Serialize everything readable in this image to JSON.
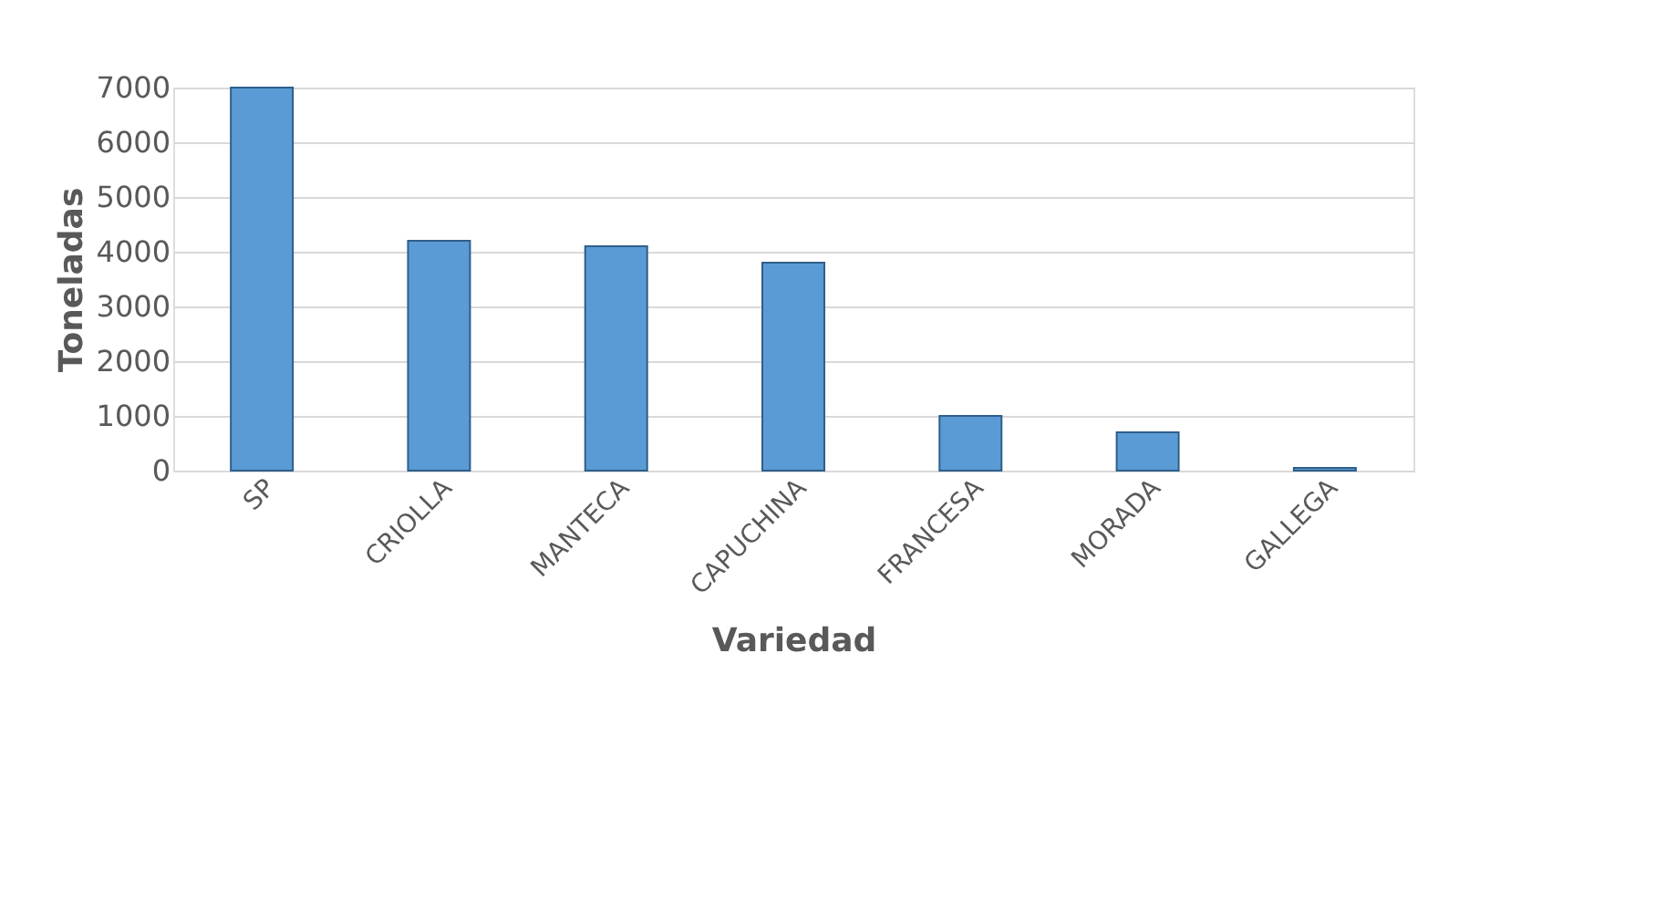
{
  "chart_data": {
    "type": "bar",
    "xlabel": "Variedad",
    "ylabel": "Toneladas",
    "categories": [
      "SP",
      "CRIOLLA",
      "MANTECA",
      "CAPUCHINA",
      "FRANCESA",
      "MORADA",
      "GALLEGA"
    ],
    "values": [
      7000,
      4200,
      4100,
      3800,
      1000,
      700,
      50
    ],
    "color": "#5b9bd5",
    "ylim": [
      0,
      7000
    ],
    "yticks": [
      0,
      1000,
      2000,
      3000,
      4000,
      5000,
      6000,
      7000
    ],
    "grid": "y"
  }
}
